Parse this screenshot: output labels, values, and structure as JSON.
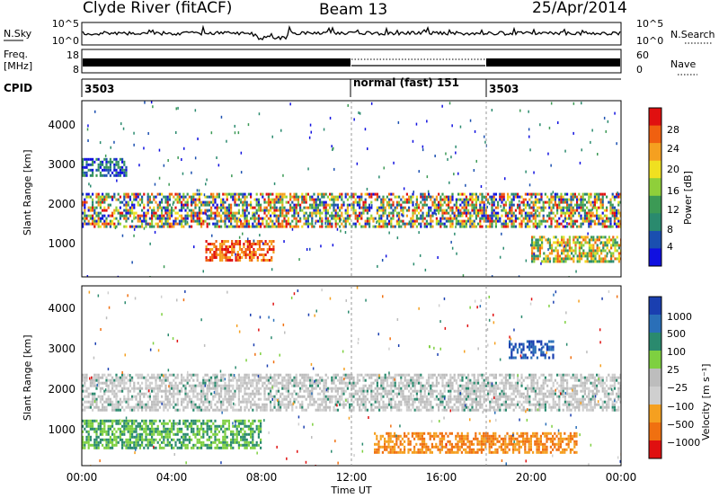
{
  "header": {
    "station": "Clyde River (fitACF)",
    "beam": "Beam 13",
    "date": "25/Apr/2014"
  },
  "noise_panel": {
    "left_label": "N.Sky",
    "left_ticks": [
      "10^5",
      "10^0"
    ],
    "right_label": "N.Search",
    "right_ticks": [
      "10^5",
      "10^0"
    ]
  },
  "freq_panel": {
    "left_label_top": "Freq.",
    "left_label_bottom": "[MHz]",
    "left_ticks": [
      "18",
      "8"
    ],
    "right_label": "Nave",
    "right_ticks": [
      "60",
      "0"
    ]
  },
  "cpid_panel": {
    "label": "CPID",
    "segments": [
      {
        "text": "3503",
        "start_hour": 0
      },
      {
        "text": "normal (fast) 151",
        "start_hour": 12
      },
      {
        "text": "3503",
        "start_hour": 18
      }
    ]
  },
  "x_axis": {
    "label": "Time UT",
    "ticks": [
      "00:00",
      "04:00",
      "08:00",
      "12:00",
      "16:00",
      "20:00",
      "00:00"
    ]
  },
  "chart_data": [
    {
      "type": "heatmap",
      "name": "power",
      "ylabel": "Slant Range [km]",
      "yticks": [
        "1000",
        "2000",
        "3000",
        "4000"
      ],
      "ylim": [
        200,
        4500
      ],
      "xlim_hours": [
        0,
        24
      ],
      "colorbar_label": "Power [dB]",
      "colorbar_ticks": [
        "4",
        "8",
        "12",
        "16",
        "20",
        "24",
        "28"
      ],
      "colors": [
        "#1010e0",
        "#1a4fb0",
        "#2a8a6e",
        "#3c9a55",
        "#8fcf3a",
        "#f0e020",
        "#f5a020",
        "#f06010",
        "#e01010"
      ],
      "bands": [
        {
          "range_km": [
            1450,
            2250
          ],
          "hours": [
            0,
            24
          ],
          "level": "mid-high"
        },
        {
          "range_km": [
            600,
            1100
          ],
          "hours": [
            5.5,
            8.5
          ],
          "level": "high"
        },
        {
          "range_km": [
            600,
            1200
          ],
          "hours": [
            20,
            24
          ],
          "level": "mid"
        },
        {
          "range_km": [
            2700,
            3100
          ],
          "hours": [
            0,
            2
          ],
          "level": "low"
        }
      ]
    },
    {
      "type": "heatmap",
      "name": "velocity",
      "ylabel": "Slant Range [km]",
      "yticks": [
        "1000",
        "2000",
        "3000",
        "4000"
      ],
      "ylim": [
        200,
        4500
      ],
      "xlim_hours": [
        0,
        24
      ],
      "colorbar_label": "Velocity [m s⁻¹]",
      "colorbar_ticks": [
        "1000",
        "500",
        "100",
        "25",
        "−25",
        "−100",
        "−500",
        "−1000"
      ],
      "colors": [
        "#1a3fb0",
        "#2a6fb8",
        "#2a8a6e",
        "#7ed040",
        "#bdbdbd",
        "#cfcfcf",
        "#f5a020",
        "#f07010",
        "#e01010"
      ],
      "bands": [
        {
          "range_km": [
            1500,
            2400
          ],
          "hours": [
            0,
            24
          ],
          "level": "near-zero"
        },
        {
          "range_km": [
            600,
            1300
          ],
          "hours": [
            0,
            8
          ],
          "level": "positive"
        },
        {
          "range_km": [
            500,
            1000
          ],
          "hours": [
            13,
            22
          ],
          "level": "negative"
        },
        {
          "range_km": [
            2800,
            3200
          ],
          "hours": [
            19,
            21
          ],
          "level": "strong-positive"
        }
      ]
    }
  ]
}
